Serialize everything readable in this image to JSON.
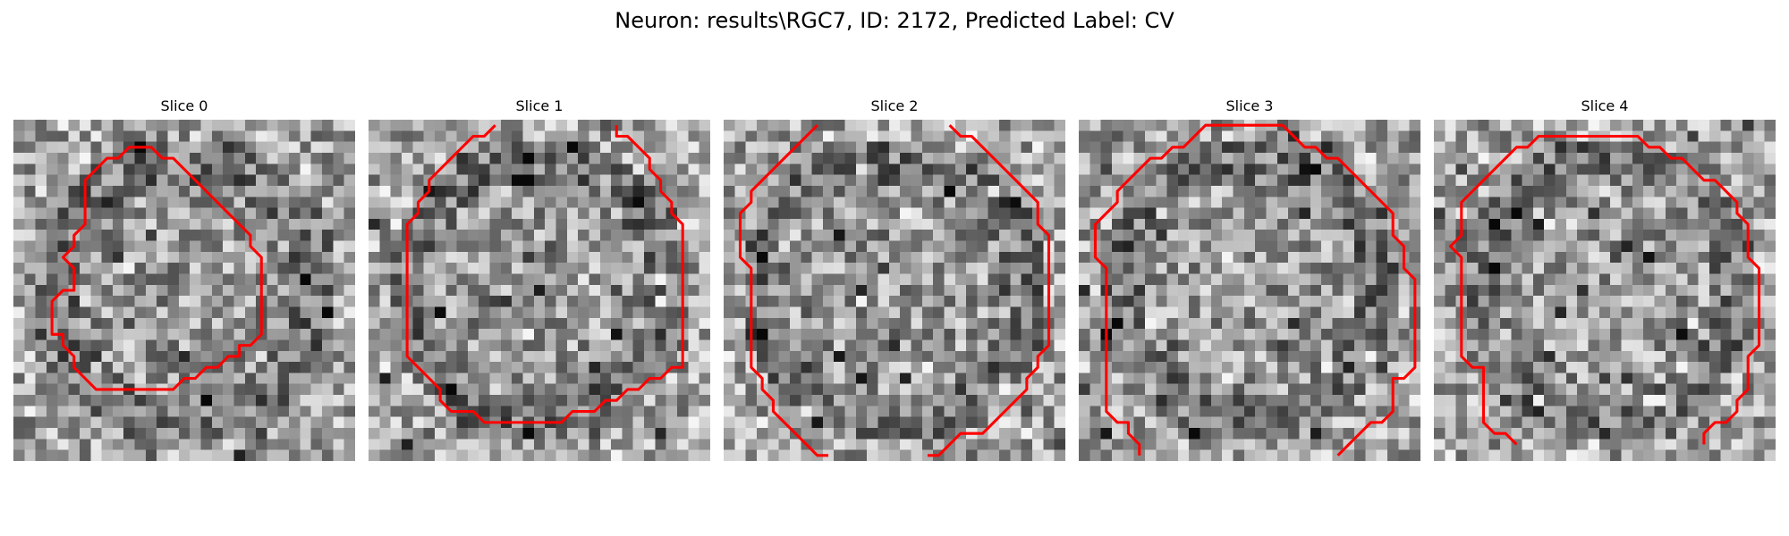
{
  "figure": {
    "title": "Neuron: results\\RGC7, ID: 2172, Predicted Label: CV"
  },
  "panels": [
    {
      "title": "Slice 0"
    },
    {
      "title": "Slice 1"
    },
    {
      "title": "Slice 2"
    },
    {
      "title": "Slice 3"
    },
    {
      "title": "Slice 4"
    }
  ],
  "colors": {
    "contour": "#ff0000",
    "background": "#ffffff"
  },
  "image": {
    "colormap": "grayscale",
    "grid_size": 31
  },
  "contours": [
    [
      [
        6,
        5
      ],
      [
        7,
        4
      ],
      [
        8,
        3
      ],
      [
        9,
        3
      ],
      [
        10,
        2
      ],
      [
        11,
        2
      ],
      [
        12,
        2
      ],
      [
        13,
        3
      ],
      [
        14,
        3
      ],
      [
        15,
        4
      ],
      [
        16,
        5
      ],
      [
        17,
        6
      ],
      [
        18,
        7
      ],
      [
        19,
        8
      ],
      [
        20,
        9
      ],
      [
        21,
        10
      ],
      [
        21,
        11
      ],
      [
        22,
        12
      ],
      [
        22,
        13
      ],
      [
        22,
        14
      ],
      [
        22,
        15
      ],
      [
        22,
        16
      ],
      [
        22,
        17
      ],
      [
        22,
        18
      ],
      [
        22,
        19
      ],
      [
        21,
        20
      ],
      [
        20,
        20
      ],
      [
        20,
        21
      ],
      [
        19,
        21
      ],
      [
        18,
        22
      ],
      [
        17,
        22
      ],
      [
        16,
        23
      ],
      [
        15,
        23
      ],
      [
        14,
        24
      ],
      [
        13,
        24
      ],
      [
        12,
        24
      ],
      [
        11,
        24
      ],
      [
        10,
        24
      ],
      [
        9,
        24
      ],
      [
        8,
        24
      ],
      [
        7,
        24
      ],
      [
        6,
        23
      ],
      [
        5,
        22
      ],
      [
        5,
        21
      ],
      [
        4,
        20
      ],
      [
        4,
        19
      ],
      [
        3,
        19
      ],
      [
        3,
        18
      ],
      [
        3,
        17
      ],
      [
        3,
        16
      ],
      [
        4,
        15
      ],
      [
        5,
        15
      ],
      [
        5,
        14
      ],
      [
        5,
        13
      ],
      [
        4,
        12
      ],
      [
        5,
        11
      ],
      [
        5,
        10
      ],
      [
        6,
        9
      ],
      [
        6,
        8
      ],
      [
        6,
        7
      ],
      [
        6,
        6
      ],
      [
        6,
        5
      ]
    ],
    [
      [
        11,
        0
      ],
      [
        10,
        1
      ],
      [
        9,
        1
      ],
      [
        8,
        2
      ],
      [
        7,
        3
      ],
      [
        6,
        4
      ],
      [
        5,
        5
      ],
      [
        5,
        6
      ],
      [
        4,
        7
      ],
      [
        4,
        8
      ],
      [
        3,
        9
      ],
      [
        3,
        10
      ],
      [
        3,
        11
      ],
      [
        3,
        12
      ],
      [
        3,
        13
      ],
      [
        3,
        14
      ],
      [
        3,
        15
      ],
      [
        3,
        16
      ],
      [
        3,
        17
      ],
      [
        3,
        18
      ],
      [
        3,
        19
      ],
      [
        3,
        20
      ],
      [
        3,
        21
      ],
      [
        4,
        22
      ],
      [
        5,
        23
      ],
      [
        6,
        24
      ],
      [
        6,
        25
      ],
      [
        7,
        26
      ],
      [
        8,
        26
      ],
      [
        9,
        26
      ],
      [
        10,
        27
      ],
      [
        11,
        27
      ],
      [
        12,
        27
      ],
      [
        13,
        27
      ],
      [
        14,
        27
      ],
      [
        15,
        27
      ],
      [
        16,
        27
      ],
      [
        17,
        27
      ],
      [
        18,
        26
      ],
      [
        19,
        26
      ],
      [
        20,
        26
      ],
      [
        21,
        25
      ],
      [
        22,
        25
      ],
      [
        23,
        24
      ],
      [
        24,
        24
      ],
      [
        25,
        23
      ],
      [
        26,
        23
      ],
      [
        27,
        22
      ],
      [
        28,
        22
      ],
      [
        28,
        21
      ],
      [
        28,
        20
      ],
      [
        28,
        19
      ],
      [
        28,
        18
      ],
      [
        28,
        17
      ],
      [
        28,
        16
      ],
      [
        28,
        15
      ],
      [
        28,
        14
      ],
      [
        28,
        13
      ],
      [
        28,
        12
      ],
      [
        28,
        11
      ],
      [
        28,
        10
      ],
      [
        28,
        9
      ],
      [
        27,
        8
      ],
      [
        27,
        7
      ],
      [
        26,
        6
      ],
      [
        26,
        5
      ],
      [
        25,
        4
      ],
      [
        25,
        3
      ],
      [
        24,
        2
      ],
      [
        23,
        1
      ],
      [
        22,
        1
      ],
      [
        22,
        0
      ]
    ],
    [
      [
        8,
        0
      ],
      [
        7,
        1
      ],
      [
        6,
        2
      ],
      [
        5,
        3
      ],
      [
        4,
        4
      ],
      [
        3,
        5
      ],
      [
        2,
        6
      ],
      [
        2,
        7
      ],
      [
        1,
        8
      ],
      [
        1,
        9
      ],
      [
        1,
        10
      ],
      [
        1,
        11
      ],
      [
        1,
        12
      ],
      [
        2,
        13
      ],
      [
        2,
        14
      ],
      [
        2,
        15
      ],
      [
        2,
        16
      ],
      [
        2,
        17
      ],
      [
        2,
        18
      ],
      [
        2,
        19
      ],
      [
        2,
        20
      ],
      [
        2,
        21
      ],
      [
        2,
        22
      ],
      [
        3,
        23
      ],
      [
        3,
        24
      ],
      [
        4,
        25
      ],
      [
        4,
        26
      ],
      [
        5,
        27
      ],
      [
        6,
        28
      ],
      [
        7,
        29
      ],
      [
        8,
        30
      ],
      [
        9,
        30
      ]
    ],
    [
      [
        20,
        0
      ],
      [
        21,
        1
      ],
      [
        22,
        1
      ],
      [
        23,
        2
      ],
      [
        24,
        3
      ],
      [
        25,
        4
      ],
      [
        26,
        5
      ],
      [
        27,
        6
      ],
      [
        28,
        7
      ],
      [
        28,
        8
      ],
      [
        28,
        9
      ],
      [
        29,
        10
      ],
      [
        29,
        11
      ],
      [
        29,
        12
      ],
      [
        29,
        13
      ],
      [
        29,
        14
      ],
      [
        29,
        15
      ],
      [
        29,
        16
      ],
      [
        29,
        17
      ],
      [
        29,
        18
      ],
      [
        29,
        19
      ],
      [
        29,
        20
      ],
      [
        28,
        21
      ],
      [
        28,
        22
      ],
      [
        27,
        23
      ],
      [
        27,
        24
      ],
      [
        26,
        25
      ],
      [
        25,
        26
      ],
      [
        24,
        27
      ],
      [
        23,
        28
      ],
      [
        22,
        28
      ],
      [
        21,
        28
      ],
      [
        20,
        29
      ],
      [
        19,
        30
      ],
      [
        18,
        30
      ]
    ],
    [
      [
        10,
        1
      ],
      [
        11,
        0
      ],
      [
        12,
        0
      ],
      [
        13,
        0
      ],
      [
        14,
        0
      ],
      [
        15,
        0
      ],
      [
        16,
        0
      ],
      [
        17,
        0
      ],
      [
        18,
        0
      ],
      [
        19,
        1
      ],
      [
        20,
        2
      ],
      [
        21,
        2
      ],
      [
        22,
        3
      ],
      [
        23,
        3
      ],
      [
        24,
        4
      ],
      [
        25,
        5
      ],
      [
        26,
        6
      ],
      [
        27,
        7
      ],
      [
        28,
        8
      ],
      [
        28,
        9
      ],
      [
        28,
        10
      ],
      [
        29,
        11
      ],
      [
        29,
        12
      ],
      [
        29,
        13
      ],
      [
        30,
        14
      ],
      [
        30,
        15
      ],
      [
        30,
        16
      ],
      [
        30,
        17
      ],
      [
        30,
        18
      ],
      [
        30,
        19
      ],
      [
        30,
        20
      ],
      [
        30,
        21
      ],
      [
        30,
        22
      ],
      [
        29,
        23
      ],
      [
        28,
        23
      ],
      [
        28,
        24
      ],
      [
        28,
        25
      ],
      [
        28,
        26
      ],
      [
        27,
        27
      ],
      [
        26,
        27
      ],
      [
        25,
        28
      ],
      [
        24,
        29
      ],
      [
        23,
        30
      ],
      [
        23,
        30
      ]
    ],
    [
      [
        10,
        1
      ],
      [
        9,
        2
      ],
      [
        8,
        2
      ],
      [
        7,
        3
      ],
      [
        6,
        3
      ],
      [
        5,
        4
      ],
      [
        4,
        5
      ],
      [
        3,
        6
      ],
      [
        3,
        7
      ],
      [
        2,
        8
      ],
      [
        1,
        9
      ],
      [
        1,
        10
      ],
      [
        1,
        11
      ],
      [
        1,
        12
      ],
      [
        2,
        13
      ],
      [
        2,
        14
      ],
      [
        2,
        15
      ],
      [
        2,
        16
      ],
      [
        2,
        17
      ],
      [
        2,
        18
      ],
      [
        2,
        19
      ],
      [
        2,
        20
      ],
      [
        2,
        21
      ],
      [
        2,
        22
      ],
      [
        2,
        23
      ],
      [
        2,
        24
      ],
      [
        2,
        25
      ],
      [
        2,
        26
      ],
      [
        3,
        27
      ],
      [
        4,
        27
      ],
      [
        4,
        28
      ],
      [
        5,
        29
      ],
      [
        5,
        30
      ]
    ],
    [
      [
        3,
        6
      ],
      [
        4,
        5
      ],
      [
        5,
        4
      ],
      [
        6,
        3
      ],
      [
        7,
        2
      ],
      [
        8,
        2
      ],
      [
        9,
        1
      ],
      [
        10,
        1
      ],
      [
        11,
        1
      ],
      [
        12,
        1
      ],
      [
        13,
        1
      ],
      [
        14,
        1
      ],
      [
        15,
        1
      ],
      [
        16,
        1
      ],
      [
        17,
        1
      ],
      [
        18,
        1
      ],
      [
        19,
        2
      ],
      [
        20,
        2
      ],
      [
        21,
        3
      ],
      [
        22,
        3
      ],
      [
        23,
        4
      ],
      [
        24,
        5
      ],
      [
        25,
        5
      ],
      [
        26,
        6
      ],
      [
        27,
        7
      ],
      [
        27,
        8
      ],
      [
        28,
        9
      ],
      [
        28,
        10
      ],
      [
        28,
        11
      ],
      [
        28,
        12
      ],
      [
        29,
        13
      ],
      [
        29,
        14
      ],
      [
        29,
        15
      ],
      [
        29,
        16
      ],
      [
        29,
        17
      ],
      [
        29,
        18
      ],
      [
        29,
        19
      ],
      [
        29,
        20
      ],
      [
        28,
        21
      ],
      [
        28,
        22
      ],
      [
        28,
        23
      ],
      [
        28,
        24
      ],
      [
        27,
        25
      ],
      [
        27,
        26
      ],
      [
        26,
        27
      ],
      [
        25,
        27
      ],
      [
        24,
        28
      ],
      [
        24,
        29
      ]
    ],
    [
      [
        3,
        6
      ],
      [
        2,
        7
      ],
      [
        2,
        8
      ],
      [
        2,
        9
      ],
      [
        2,
        10
      ],
      [
        1,
        11
      ],
      [
        2,
        12
      ],
      [
        2,
        13
      ],
      [
        2,
        14
      ],
      [
        2,
        15
      ],
      [
        2,
        16
      ],
      [
        2,
        17
      ],
      [
        2,
        18
      ],
      [
        2,
        19
      ],
      [
        2,
        20
      ],
      [
        2,
        21
      ],
      [
        3,
        22
      ],
      [
        4,
        22
      ],
      [
        4,
        23
      ],
      [
        4,
        24
      ],
      [
        4,
        25
      ],
      [
        4,
        26
      ],
      [
        4,
        27
      ],
      [
        5,
        28
      ],
      [
        6,
        28
      ],
      [
        7,
        29
      ],
      [
        7,
        29
      ]
    ]
  ],
  "contour_groups": [
    [
      0
    ],
    [
      1
    ],
    [
      2,
      3
    ],
    [
      4,
      5
    ],
    [
      6,
      7
    ]
  ]
}
